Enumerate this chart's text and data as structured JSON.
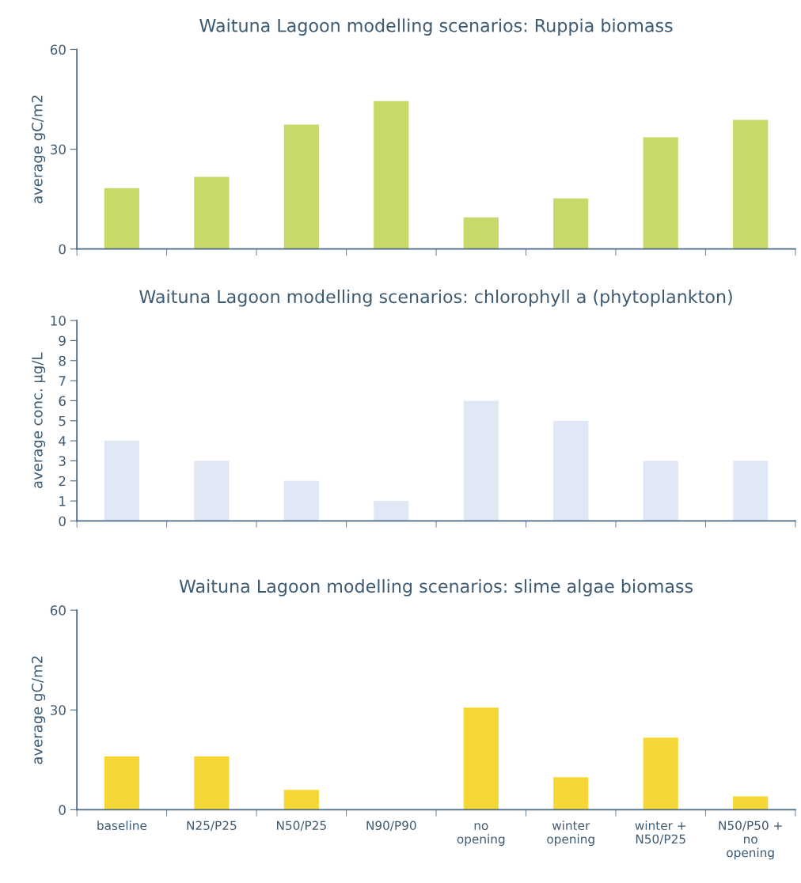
{
  "chart_data": [
    {
      "type": "bar",
      "title": "Waituna Lagoon modelling scenarios: Ruppia biomass",
      "ylabel": "average gC/m2",
      "categories": [
        null,
        null,
        null,
        null,
        null,
        null,
        null,
        null
      ],
      "values": [
        18.3,
        21.7,
        37.4,
        44.5,
        9.5,
        15.2,
        33.6,
        38.8
      ],
      "color": "#c8d96a",
      "ylim": [
        0,
        60
      ],
      "yticks": [
        0,
        30,
        60
      ]
    },
    {
      "type": "bar",
      "title": "Waituna Lagoon modelling scenarios: chlorophyll a (phytoplankton)",
      "ylabel": "average conc. µg/L",
      "categories": [
        null,
        null,
        null,
        null,
        null,
        null,
        null,
        null
      ],
      "values": [
        4,
        3,
        2,
        1,
        6,
        5,
        3,
        3
      ],
      "color": "#dfe8f4",
      "ylim": [
        0,
        10
      ],
      "yticks": [
        0,
        1,
        2,
        3,
        4,
        5,
        6,
        7,
        8,
        9,
        10
      ]
    },
    {
      "type": "bar",
      "title": "Waituna Lagoon modelling scenarios: slime algae biomass",
      "ylabel": "average gC/m2",
      "categories": [
        "baseline",
        "N25/P25",
        "N50/P25",
        "N90/P90",
        "no\nopening",
        "winter\nopening",
        "winter +\nN50/P25",
        "N50/P50 +\nno\nopening"
      ],
      "values": [
        16,
        16,
        6,
        0,
        30.7,
        9.8,
        21.7,
        4
      ],
      "color": "#f5d838",
      "ylim": [
        0,
        60
      ],
      "yticks": [
        0,
        30,
        60
      ]
    }
  ]
}
